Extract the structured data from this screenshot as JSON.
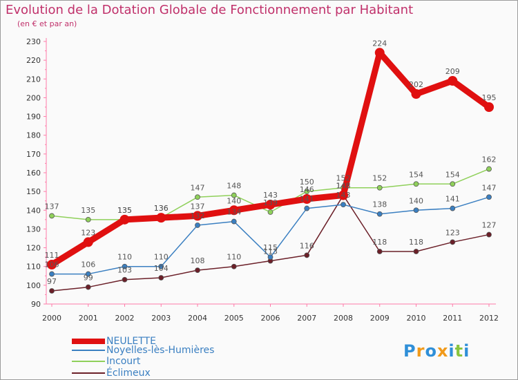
{
  "title": "Evolution de la Dotation Globale de Fonctionnement par Habitant",
  "subtitle": "(en € et par an)",
  "logo": {
    "text": "Proxiti",
    "letter_colors": [
      "#2f8fd8",
      "#f19a1a",
      "#2f8fd8",
      "#f19a1a",
      "#2f8fd8",
      "#8ac43f",
      "#2f8fd8"
    ]
  },
  "chart_data": {
    "type": "line",
    "title": "Evolution de la Dotation Globale de Fonctionnement par Habitant",
    "subtitle": "(en € et par an)",
    "x": [
      "2000",
      "2001",
      "2002",
      "2003",
      "2004",
      "2005",
      "2006",
      "2007",
      "2008",
      "2009",
      "2010",
      "2011",
      "2012"
    ],
    "ylim": [
      90,
      230
    ],
    "yticks": [
      90,
      100,
      110,
      120,
      130,
      140,
      150,
      160,
      170,
      180,
      190,
      200,
      210,
      220,
      230
    ],
    "grid": false,
    "legend_position": "bottom-left",
    "series": [
      {
        "name": "Éclimeux",
        "color": "#6b1f28",
        "bold": false,
        "values": [
          97,
          99,
          103,
          104,
          108,
          110,
          113,
          116,
          148,
          118,
          118,
          123,
          127
        ],
        "labels": [
          "97",
          "99",
          "103",
          "104",
          "108",
          "110",
          "113",
          "116",
          "148",
          "118",
          "118",
          "123",
          "127"
        ]
      },
      {
        "name": "Noyelles-lès-Humières",
        "color": "#3a7fc1",
        "bold": false,
        "values": [
          106,
          106,
          110,
          110,
          132,
          134,
          115,
          141,
          143,
          138,
          140,
          141,
          147
        ],
        "labels": [
          "106",
          "106",
          "110",
          "110",
          "132",
          "134",
          "115",
          "141",
          "143",
          "138",
          "140",
          "141",
          "147"
        ]
      },
      {
        "name": "Incourt",
        "color": "#8fd05a",
        "bold": false,
        "values": [
          137,
          135,
          135,
          136,
          147,
          148,
          139,
          150,
          152,
          152,
          154,
          154,
          162
        ],
        "labels": [
          "137",
          "135",
          "135",
          "136",
          "147",
          "148",
          "139",
          "150",
          "152",
          "152",
          "154",
          "154",
          "162"
        ]
      },
      {
        "name": "NEULETTE",
        "color": "#e01010",
        "bold": true,
        "values": [
          111,
          123,
          135,
          136,
          137,
          140,
          143,
          146,
          148,
          224,
          202,
          209,
          195
        ],
        "labels": [
          "111",
          "123",
          "135",
          "136",
          "137",
          "140",
          "143",
          "146",
          "148",
          "224",
          "202",
          "209",
          "195"
        ]
      }
    ],
    "legend": [
      {
        "name": "NEULETTE",
        "color": "#e01010",
        "text_color": "#3a7fc1",
        "bold": true
      },
      {
        "name": "Noyelles-lès-Humières",
        "color": "#3a7fc1",
        "text_color": "#3a7fc1",
        "bold": false
      },
      {
        "name": "Incourt",
        "color": "#8fd05a",
        "text_color": "#3a7fc1",
        "bold": false
      },
      {
        "name": "Éclimeux",
        "color": "#6b1f28",
        "text_color": "#3a7fc1",
        "bold": false
      }
    ]
  }
}
